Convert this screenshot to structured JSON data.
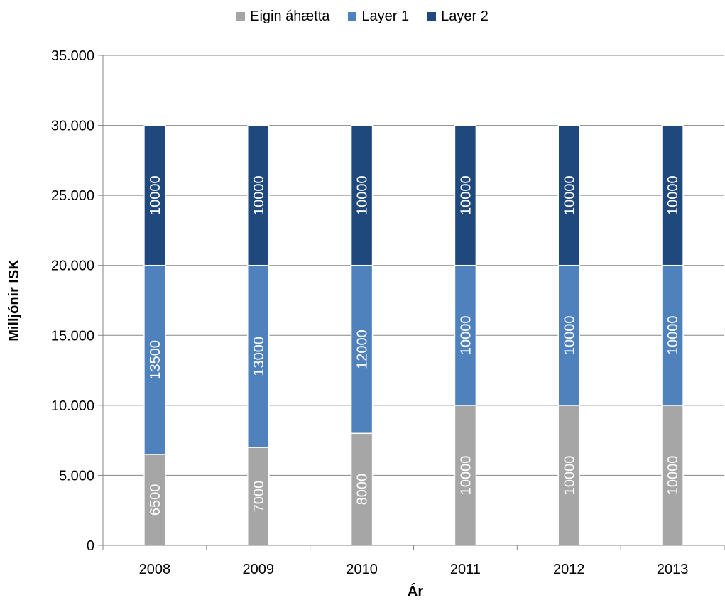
{
  "chart_data": {
    "type": "bar",
    "stacked": true,
    "categories": [
      "2008",
      "2009",
      "2010",
      "2011",
      "2012",
      "2013"
    ],
    "series": [
      {
        "name": "Eigin áhætta",
        "color": "#a6a6a6",
        "values": [
          6500,
          7000,
          8000,
          10000,
          10000,
          10000
        ]
      },
      {
        "name": "Layer 1",
        "color": "#4f81bd",
        "values": [
          13500,
          13000,
          12000,
          10000,
          10000,
          10000
        ]
      },
      {
        "name": "Layer 2",
        "color": "#1f497d",
        "values": [
          10000,
          10000,
          10000,
          10000,
          10000,
          10000
        ]
      }
    ],
    "xlabel": "Ár",
    "ylabel": "Milljónir ISK",
    "ylim": [
      0,
      35000
    ],
    "yticks": [
      0,
      5000,
      10000,
      15000,
      20000,
      25000,
      30000,
      35000
    ],
    "ytick_labels": [
      "0",
      "5.000",
      "10.000",
      "15.000",
      "20.000",
      "25.000",
      "30.000",
      "35.000"
    ],
    "grid": true,
    "legend_position": "top",
    "data_labels": true
  }
}
